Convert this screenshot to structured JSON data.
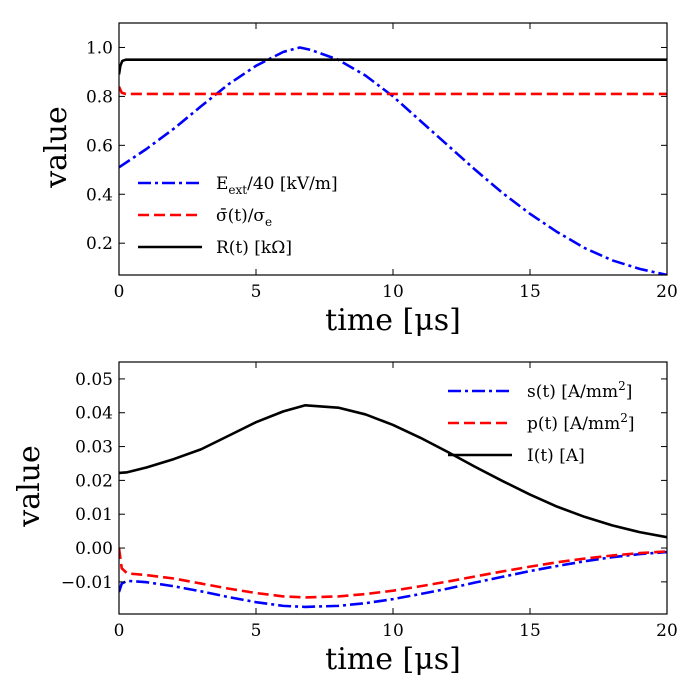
{
  "chart_data": [
    {
      "type": "line",
      "xlabel": "time [μs]",
      "ylabel": "value",
      "xlim": [
        0,
        20
      ],
      "ylim": [
        0.07,
        1.1
      ],
      "xticks": [
        0,
        5,
        10,
        15,
        20
      ],
      "yticks": [
        0.2,
        0.4,
        0.6,
        0.8,
        1.0
      ],
      "xtick_labels": [
        "0",
        "5",
        "10",
        "15",
        "20"
      ],
      "ytick_labels": [
        "0.2",
        "0.4",
        "0.6",
        "0.8",
        "1.0"
      ],
      "legend_position": "lower-left",
      "series": [
        {
          "name": "E_ext/40 [kV/m]",
          "color": "#0000ff",
          "dash": "dashdot",
          "x": [
            0,
            1,
            2,
            3,
            4,
            5,
            6,
            6.6,
            7,
            8,
            9,
            10,
            11,
            12,
            13,
            14,
            15,
            16,
            17,
            18,
            19,
            20
          ],
          "y": [
            0.51,
            0.585,
            0.668,
            0.76,
            0.85,
            0.925,
            0.982,
            1.0,
            0.99,
            0.95,
            0.885,
            0.8,
            0.7,
            0.6,
            0.5,
            0.405,
            0.32,
            0.245,
            0.18,
            0.13,
            0.095,
            0.07
          ]
        },
        {
          "name": "σ̄(t)/σ_e",
          "color": "#ff0000",
          "dash": "dashed",
          "x": [
            0,
            0.1,
            0.25,
            5,
            10,
            15,
            20
          ],
          "y": [
            0.84,
            0.815,
            0.81,
            0.81,
            0.81,
            0.81,
            0.81
          ]
        },
        {
          "name": "R(t) [kΩ]",
          "color": "#000000",
          "dash": "solid",
          "x": [
            0,
            0.05,
            0.12,
            0.25,
            5,
            10,
            15,
            20
          ],
          "y": [
            0.89,
            0.925,
            0.945,
            0.95,
            0.95,
            0.95,
            0.95,
            0.95
          ]
        }
      ]
    },
    {
      "type": "line",
      "xlabel": "time [μs]",
      "ylabel": "value",
      "xlim": [
        0,
        20
      ],
      "ylim": [
        -0.0195,
        0.055
      ],
      "xticks": [
        0,
        5,
        10,
        15,
        20
      ],
      "yticks": [
        -0.01,
        0.0,
        0.01,
        0.02,
        0.03,
        0.04,
        0.05
      ],
      "xtick_labels": [
        "0",
        "5",
        "10",
        "15",
        "20"
      ],
      "ytick_labels": [
        "−0.01",
        "0.00",
        "0.01",
        "0.02",
        "0.03",
        "0.04",
        "0.05"
      ],
      "legend_position": "top-right",
      "series": [
        {
          "name": "s(t) [A/mm²]",
          "color": "#0000ff",
          "dash": "dashdot",
          "x": [
            0,
            0.1,
            0.3,
            1,
            2,
            3,
            4,
            5,
            6,
            6.8,
            8,
            9,
            10,
            11,
            12,
            13,
            14,
            15,
            16,
            17,
            18,
            19,
            20
          ],
          "y": [
            -0.013,
            -0.0105,
            -0.0097,
            -0.0101,
            -0.0113,
            -0.0128,
            -0.0145,
            -0.016,
            -0.0171,
            -0.0174,
            -0.0171,
            -0.0163,
            -0.0151,
            -0.0136,
            -0.012,
            -0.0102,
            -0.0085,
            -0.0068,
            -0.0053,
            -0.0039,
            -0.0027,
            -0.0018,
            -0.0012
          ]
        },
        {
          "name": "p(t) [A/mm²]",
          "color": "#ff0000",
          "dash": "dashed",
          "x": [
            0,
            0.1,
            0.3,
            1,
            2,
            3,
            4,
            5,
            6,
            6.8,
            8,
            9,
            10,
            11,
            12,
            13,
            14,
            15,
            16,
            17,
            18,
            19,
            20
          ],
          "y": [
            0.0,
            -0.006,
            -0.0075,
            -0.008,
            -0.009,
            -0.0105,
            -0.012,
            -0.0133,
            -0.0143,
            -0.0146,
            -0.0143,
            -0.0136,
            -0.0126,
            -0.0113,
            -0.0099,
            -0.0084,
            -0.0069,
            -0.0055,
            -0.0042,
            -0.0031,
            -0.0022,
            -0.0015,
            -0.001
          ]
        },
        {
          "name": "I(t) [A]",
          "color": "#000000",
          "dash": "solid",
          "x": [
            0,
            0.3,
            1,
            2,
            3,
            4,
            5,
            6,
            6.8,
            8,
            9,
            10,
            11,
            12,
            13,
            14,
            15,
            16,
            17,
            18,
            19,
            20
          ],
          "y": [
            0.0222,
            0.0224,
            0.0238,
            0.0263,
            0.0292,
            0.0332,
            0.0372,
            0.0404,
            0.0422,
            0.0415,
            0.0395,
            0.0364,
            0.0326,
            0.0284,
            0.024,
            0.0198,
            0.0158,
            0.0122,
            0.0092,
            0.0067,
            0.0047,
            0.0032
          ]
        }
      ]
    }
  ]
}
